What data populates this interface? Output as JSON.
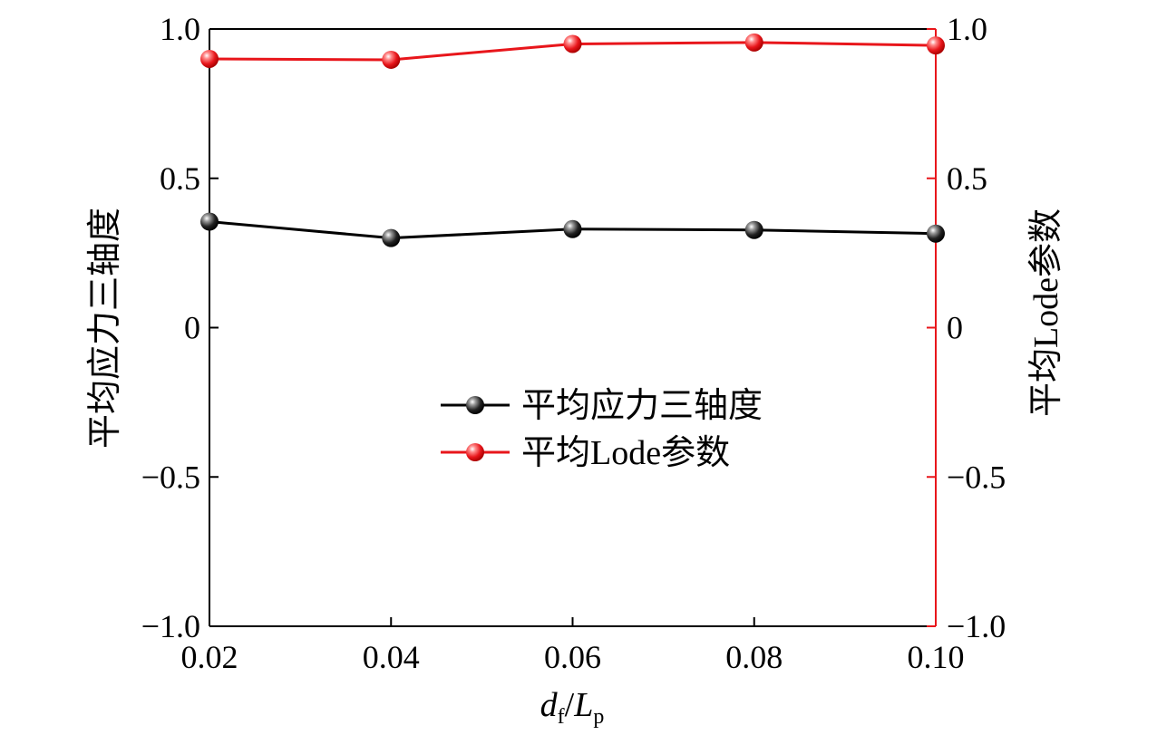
{
  "chart_data": {
    "type": "line",
    "x": [
      0.02,
      0.04,
      0.06,
      0.08,
      0.1
    ],
    "x_tick_labels": [
      "0.02",
      "0.04",
      "0.06",
      "0.08",
      "0.10"
    ],
    "xlim": [
      0.02,
      0.1
    ],
    "xlabel": {
      "main1": "d",
      "sub1": "f",
      "slash": "/",
      "main2": "L",
      "sub2": "p"
    },
    "y_left": {
      "label": "平均应力三轴度",
      "ylim": [
        -1.0,
        1.0
      ],
      "ticks": [
        -1.0,
        -0.5,
        0,
        0.5,
        1.0
      ],
      "tick_labels": [
        "−1.0",
        "−0.5",
        "0",
        "0.5",
        "1.0"
      ],
      "color": "#000000"
    },
    "y_right": {
      "label": "平均Lode参数",
      "ylim": [
        -1.0,
        1.0
      ],
      "ticks": [
        -1.0,
        -0.5,
        0,
        0.5,
        1.0
      ],
      "tick_labels": [
        "−1.0",
        "−0.5",
        "0",
        "0.5",
        "1.0"
      ],
      "color": "#e8161b"
    },
    "series": [
      {
        "name": "平均应力三轴度",
        "axis": "left",
        "color": "#000000",
        "values": [
          0.355,
          0.3,
          0.33,
          0.327,
          0.315
        ]
      },
      {
        "name": "平均Lode参数",
        "axis": "right",
        "color": "#e8161b",
        "values": [
          0.9,
          0.897,
          0.95,
          0.955,
          0.945
        ]
      }
    ],
    "legend_position": "center",
    "grid": false
  }
}
